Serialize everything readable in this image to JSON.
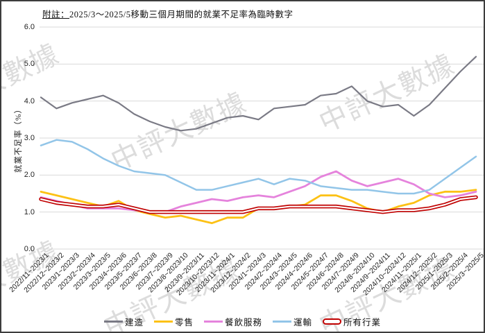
{
  "note": {
    "prefix": "附註：",
    "text": "2025/3～2025/5移動三個月期間的就業不足率為臨時數字"
  },
  "watermark": {
    "text": "中評大數據",
    "color": "#c7c7c7"
  },
  "chart_data": {
    "type": "line",
    "title": "",
    "xlabel": "",
    "ylabel": "就業不足率（%）",
    "ylim": [
      0.0,
      6.0
    ],
    "yticks": [
      "0.0",
      "1.0",
      "2.0",
      "3.0",
      "4.0",
      "5.0",
      "6.0"
    ],
    "grid": true,
    "legend_position": "bottom",
    "categories": [
      "2022/11~2023/1",
      "2022/12~2023/2",
      "2023/1~2023/3",
      "2023/2~2023/4",
      "2023/3~2023/5",
      "2023/4~2023/6",
      "2023/5~2023/7",
      "2023/6~2023/8",
      "2023/7~2023/9",
      "2023/8~2023/10",
      "2023/9~2023/11",
      "2023/10~2023/12",
      "2023/11~2024/1",
      "2023/12~2024/2",
      "2024/1~2024/3",
      "2024/2~2024/4",
      "2024/3~2024/5",
      "2024/4~2024/6",
      "2024/5~2024/7",
      "2024/6~2024/8",
      "2024/7~2024/9",
      "2024/8~2024/10",
      "2024/9~2024/11",
      "2024/10~2024/12",
      "2024/11~2025/1",
      "2024/12~2025/2",
      "2025/1~2025/3",
      "2025/2~2025/4",
      "2025/3~2025/5"
    ],
    "series": [
      {
        "name": "建造",
        "color": "#7a7a85",
        "style": "solid",
        "width": 2.2,
        "values": [
          4.1,
          3.8,
          3.95,
          4.05,
          4.15,
          3.95,
          3.65,
          3.45,
          3.3,
          3.2,
          3.25,
          3.4,
          3.55,
          3.6,
          3.5,
          3.8,
          3.85,
          3.9,
          4.15,
          4.2,
          4.4,
          4.0,
          3.85,
          3.9,
          3.6,
          3.9,
          4.35,
          4.8,
          5.2
        ]
      },
      {
        "name": "零售",
        "color": "#fcc115",
        "style": "solid",
        "width": 2.8,
        "values": [
          1.55,
          1.45,
          1.35,
          1.25,
          1.15,
          1.3,
          1.05,
          0.95,
          0.85,
          0.9,
          0.8,
          0.7,
          0.85,
          0.85,
          1.1,
          1.1,
          1.15,
          1.2,
          1.45,
          1.45,
          1.3,
          1.1,
          1.0,
          1.15,
          1.25,
          1.45,
          1.55,
          1.55,
          1.6
        ]
      },
      {
        "name": "餐飲服務",
        "color": "#e583dc",
        "style": "solid",
        "width": 2.8,
        "values": [
          1.4,
          1.3,
          1.2,
          1.1,
          1.1,
          1.1,
          1.05,
          1.0,
          1.0,
          1.15,
          1.25,
          1.35,
          1.3,
          1.4,
          1.45,
          1.4,
          1.55,
          1.7,
          1.95,
          2.1,
          1.85,
          1.7,
          1.8,
          1.9,
          1.75,
          1.5,
          1.4,
          1.45,
          1.55
        ]
      },
      {
        "name": "運輸",
        "color": "#92c5e8",
        "style": "solid",
        "width": 2.5,
        "values": [
          2.8,
          2.95,
          2.9,
          2.7,
          2.45,
          2.25,
          2.1,
          2.05,
          2.0,
          1.8,
          1.6,
          1.6,
          1.7,
          1.8,
          1.9,
          1.75,
          1.9,
          1.85,
          1.7,
          1.65,
          1.6,
          1.6,
          1.55,
          1.5,
          1.5,
          1.6,
          1.9,
          2.2,
          2.5
        ]
      },
      {
        "name": "所有行業",
        "color": "#c00000",
        "style": "double",
        "width": 5.5,
        "values": [
          1.35,
          1.25,
          1.2,
          1.15,
          1.15,
          1.2,
          1.1,
          1.0,
          1.0,
          1.0,
          1.0,
          1.0,
          1.0,
          1.0,
          1.1,
          1.1,
          1.15,
          1.15,
          1.15,
          1.15,
          1.1,
          1.05,
          1.0,
          1.05,
          1.05,
          1.1,
          1.2,
          1.35,
          1.4
        ]
      }
    ]
  }
}
